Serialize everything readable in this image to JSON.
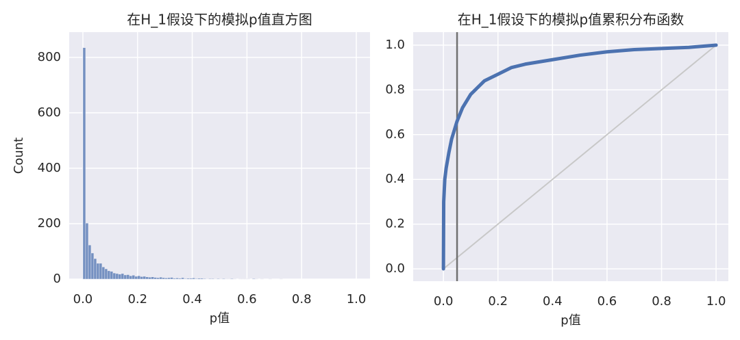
{
  "chart_data": [
    {
      "type": "histogram",
      "title": "在H_1假设下的模拟p值直方图",
      "xlabel": "p值",
      "ylabel": "Count",
      "bins": [
        0,
        0.01,
        0.02,
        0.03,
        0.04,
        0.05,
        0.06,
        0.07,
        0.08,
        0.09,
        0.1,
        0.11,
        0.12,
        0.13,
        0.14,
        0.15,
        0.16,
        0.17,
        0.18,
        0.19,
        0.2,
        0.21,
        0.22,
        0.23,
        0.24,
        0.25,
        0.26,
        0.27,
        0.28,
        0.29,
        0.3,
        0.31,
        0.32,
        0.33,
        0.34,
        0.35,
        0.36,
        0.37,
        0.38,
        0.39,
        0.4,
        0.41,
        0.42,
        0.43,
        0.44,
        0.45,
        0.46,
        0.47,
        0.48,
        0.49,
        0.5,
        0.51,
        0.52,
        0.53,
        0.54,
        0.55,
        0.56,
        0.57,
        0.58,
        0.59,
        0.6,
        0.61,
        0.62,
        0.63,
        0.64,
        0.65,
        0.66,
        0.67,
        0.68,
        0.69,
        0.7,
        0.71,
        0.72,
        0.73,
        0.74,
        0.75,
        0.76,
        0.77,
        0.78,
        0.79,
        0.8,
        0.81,
        0.82,
        0.83,
        0.84,
        0.85,
        0.86,
        0.87,
        0.88,
        0.89,
        0.9,
        0.91,
        0.92,
        0.93,
        0.94,
        0.95,
        0.96,
        0.97,
        0.98,
        0.99,
        1
      ],
      "values": [
        835,
        202,
        123,
        94,
        74,
        57,
        57,
        44,
        37,
        30,
        28,
        22,
        20,
        18,
        20,
        15,
        16,
        12,
        14,
        10,
        12,
        9,
        10,
        8,
        7,
        8,
        6,
        5,
        7,
        5,
        4,
        5,
        6,
        3,
        4,
        3,
        5,
        2,
        3,
        3,
        4,
        2,
        3,
        3,
        2,
        1,
        2,
        2,
        1,
        2,
        1,
        2,
        1,
        1,
        2,
        1,
        0,
        1,
        1,
        1,
        1,
        0,
        2,
        1,
        0,
        1,
        0,
        0,
        1,
        0,
        0,
        0,
        1,
        0,
        0,
        0,
        0,
        0,
        0,
        0,
        0,
        0,
        0,
        0,
        0,
        0,
        0,
        0,
        0,
        0,
        0,
        0,
        0,
        0,
        0,
        0,
        0,
        0,
        0,
        0
      ],
      "color": "#4c72b0",
      "xlim": [
        -0.05,
        1.05
      ],
      "ylim": [
        0,
        891
      ],
      "xticks": [
        {
          "value": 0,
          "label": "0.0"
        },
        0.2,
        0.4,
        0.6,
        0.8,
        {
          "value": 1,
          "label": "1.0"
        }
      ],
      "yticks": [
        0,
        200,
        400,
        600,
        800
      ],
      "grid": true
    },
    {
      "type": "line",
      "title": "在H_1假设下的模拟p值累积分布函数",
      "xlabel": "p值",
      "series": [
        {
          "color": "#4c72b0",
          "width": 5,
          "x": [
            0,
            0.001,
            0.005,
            0.01,
            0.02,
            0.03,
            0.05,
            0.07,
            0.1,
            0.15,
            0.2,
            0.25,
            0.3,
            0.4,
            0.5,
            0.6,
            0.7,
            0.8,
            0.9,
            1
          ],
          "values": [
            0,
            0.3,
            0.4,
            0.45,
            0.52,
            0.58,
            0.66,
            0.72,
            0.78,
            0.84,
            0.87,
            0.9,
            0.915,
            0.935,
            0.955,
            0.97,
            0.98,
            0.985,
            0.99,
            1
          ]
        },
        {
          "color": "#c8c8c8",
          "width": 2,
          "x": [
            0,
            1
          ],
          "values": [
            0,
            1
          ]
        }
      ],
      "vline": 0.05,
      "vline_color": "#707070",
      "xlim": [
        -0.111,
        1.045
      ],
      "ylim": [
        -0.055,
        1.058
      ],
      "xticks": [
        {
          "value": 0,
          "label": "0.0"
        },
        0.2,
        0.4,
        0.6,
        0.8,
        {
          "value": 1,
          "label": "1.0"
        }
      ],
      "yticks": [
        {
          "value": 0,
          "label": "0.0"
        },
        0.2,
        0.4,
        0.6,
        0.8,
        {
          "value": 1,
          "label": "1.0"
        }
      ],
      "grid": true
    }
  ]
}
